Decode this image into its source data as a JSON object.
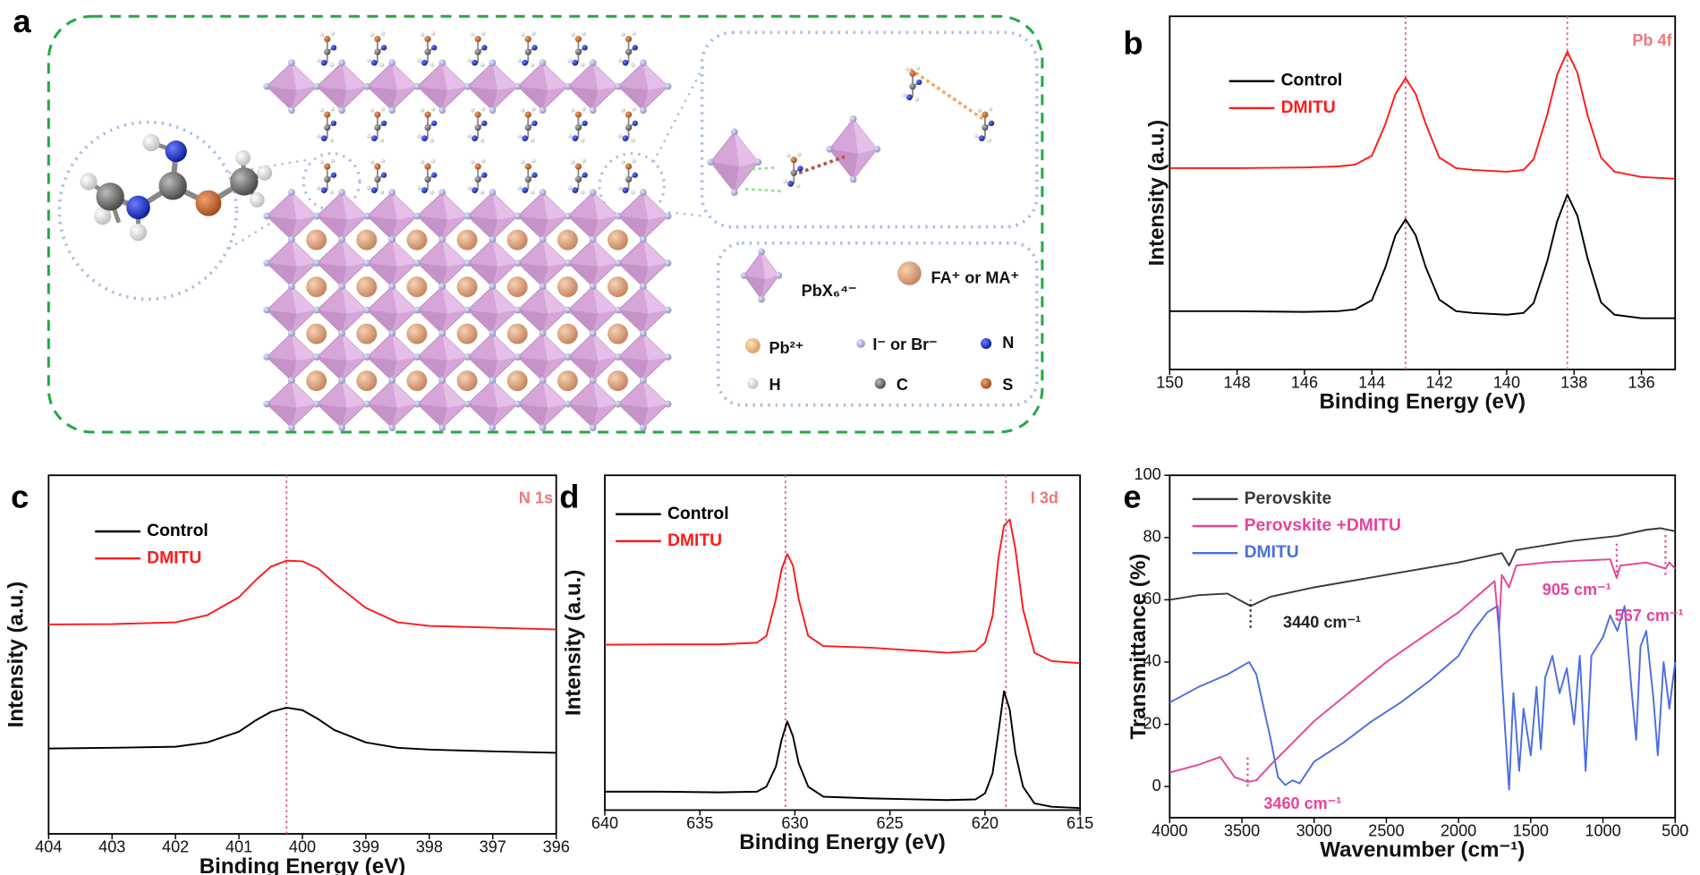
{
  "panel_a": {
    "label": "a",
    "legend": {
      "octahedron": "PbX₆⁴⁻",
      "cation": "FA⁺ or MA⁺",
      "pb": "Pb²⁺",
      "halide": "I⁻ or Br⁻",
      "n": "N",
      "h": "H",
      "c": "C",
      "s": "S"
    }
  },
  "chart_data": [
    {
      "type": "line",
      "label": "b",
      "annotation": "Pb 4f",
      "xlabel": "Binding Energy (eV)",
      "ylabel": "Intensity (a.u.)",
      "xlim": [
        150,
        135
      ],
      "xticks": [
        150,
        148,
        146,
        144,
        142,
        140,
        138,
        136
      ],
      "ylim": [
        0,
        100
      ],
      "reference_lines": [
        143.0,
        138.2
      ],
      "reference_color": "#e0508a",
      "series": [
        {
          "name": "Control",
          "color": "#000000",
          "x": [
            150,
            148,
            146,
            145,
            144.5,
            144,
            143.6,
            143.3,
            143,
            142.7,
            142.4,
            142,
            141.5,
            141,
            140,
            139.5,
            139.2,
            138.8,
            138.5,
            138.2,
            137.9,
            137.6,
            137.2,
            136.8,
            136,
            135
          ],
          "values": [
            16.5,
            16.5,
            16.3,
            16.5,
            17,
            19.6,
            28.9,
            38,
            42.5,
            38,
            28.9,
            19.8,
            16.5,
            16,
            15.5,
            16,
            18.8,
            30.5,
            42,
            49.5,
            43.5,
            31.5,
            19,
            15.5,
            14.5,
            14.5
          ]
        },
        {
          "name": "DMITU",
          "color": "#ff1a1a",
          "x": [
            150,
            148,
            146,
            145,
            144.5,
            144,
            143.6,
            143.3,
            143,
            142.7,
            142.4,
            142,
            141.5,
            141,
            140,
            139.5,
            139.2,
            138.8,
            138.5,
            138.2,
            137.9,
            137.6,
            137.2,
            136.8,
            136,
            135
          ],
          "values": [
            57,
            57,
            57.2,
            57.5,
            58,
            60.5,
            69.5,
            78,
            82.5,
            78,
            69.5,
            60,
            57,
            56.5,
            56,
            56.5,
            59.5,
            72,
            83.5,
            90,
            84,
            72,
            60,
            56,
            54.5,
            54
          ]
        }
      ]
    },
    {
      "type": "line",
      "label": "c",
      "annotation": "N 1s",
      "xlabel": "Binding Energy (eV)",
      "ylabel": "Intensity (a.u.)",
      "xlim": [
        404,
        396
      ],
      "xticks": [
        404,
        403,
        402,
        401,
        400,
        399,
        398,
        397,
        396
      ],
      "ylim": [
        0,
        100
      ],
      "reference_lines": [
        400.25
      ],
      "reference_color": "#e0508a",
      "series": [
        {
          "name": "Control",
          "color": "#000000",
          "x": [
            404,
            403,
            402,
            401.5,
            401,
            400.75,
            400.5,
            400.25,
            400,
            399.75,
            399.5,
            399,
            398.5,
            398,
            397,
            396
          ],
          "values": [
            23.8,
            24,
            24.3,
            25.5,
            28.5,
            31.5,
            34,
            35.2,
            34.5,
            32,
            29,
            25.5,
            24,
            23.5,
            23,
            22.6
          ]
        },
        {
          "name": "DMITU",
          "color": "#ff1a1a",
          "x": [
            404,
            403,
            402,
            401.5,
            401,
            400.75,
            400.5,
            400.25,
            400,
            399.75,
            399.5,
            399,
            398.5,
            398,
            397,
            396
          ],
          "values": [
            58.4,
            58.5,
            59,
            61,
            66,
            70.5,
            74.5,
            76.2,
            76,
            74,
            70,
            63,
            59,
            58,
            57.5,
            57
          ]
        }
      ]
    },
    {
      "type": "line",
      "label": "d",
      "annotation": "I 3d",
      "xlabel": "Binding Energy (eV)",
      "ylabel": "Intensity (a.u.)",
      "xlim": [
        640,
        615
      ],
      "xticks": [
        640,
        635,
        630,
        625,
        620,
        615
      ],
      "ylim": [
        0,
        100
      ],
      "reference_lines": [
        630.5,
        618.9
      ],
      "reference_color": "#e0508a",
      "series": [
        {
          "name": "Control",
          "color": "#000000",
          "x": [
            640,
            637,
            634,
            632,
            631.5,
            631,
            630.7,
            630.4,
            630.1,
            629.8,
            629.3,
            628.5,
            626,
            622,
            620.5,
            620,
            619.6,
            619.3,
            619,
            618.7,
            618.4,
            618,
            617.4,
            616.5,
            615
          ],
          "values": [
            5.5,
            5.5,
            5.3,
            5.5,
            7,
            13,
            21,
            26.5,
            22,
            14,
            7,
            4,
            3.5,
            3,
            3.2,
            5,
            11,
            23,
            35.5,
            30,
            17,
            7,
            2,
            1,
            0.6
          ]
        },
        {
          "name": "DMITU",
          "color": "#ff1a1a",
          "x": [
            640,
            637,
            634,
            632,
            631.5,
            631,
            630.7,
            630.4,
            630.1,
            629.8,
            629.3,
            628.5,
            626,
            622,
            620.5,
            620,
            619.6,
            619.3,
            619,
            618.7,
            618.4,
            618,
            617.4,
            616.5,
            615
          ],
          "values": [
            49.4,
            49.5,
            49.5,
            50,
            52,
            63,
            72,
            76.5,
            73,
            63,
            52,
            49,
            48.5,
            47,
            47.5,
            50,
            58,
            75,
            85,
            86.8,
            78,
            60,
            47,
            44.5,
            43.9
          ]
        }
      ]
    },
    {
      "type": "line",
      "label": "e",
      "xlabel": "Wavenumber (cm⁻¹)",
      "ylabel": "Transmittance (%)",
      "xlim": [
        4000,
        500
      ],
      "xticks": [
        4000,
        3500,
        3000,
        2500,
        2000,
        1500,
        1000,
        500
      ],
      "ylim": [
        -10,
        100
      ],
      "yticks": [
        0,
        20,
        40,
        60,
        80,
        100
      ],
      "markers": [
        {
          "x": 3440,
          "ymin": 51,
          "ymax": 60,
          "color": "#222222"
        },
        {
          "x": 3460,
          "ymin": 0,
          "ymax": 10,
          "color": "#e8439a"
        },
        {
          "x": 905,
          "ymin": 67,
          "ymax": 78,
          "color": "#e8439a"
        },
        {
          "x": 567,
          "ymin": 68,
          "ymax": 82,
          "color": "#e8439a"
        }
      ],
      "annotations": [
        {
          "text": "3440 cm⁻¹",
          "color": "#222222"
        },
        {
          "text": "3460 cm⁻¹",
          "color": "#e8439a"
        },
        {
          "text": "905 cm⁻¹",
          "color": "#e8439a"
        },
        {
          "text": "567 cm⁻¹",
          "color": "#e8439a"
        }
      ],
      "series": [
        {
          "name": "Perovskite",
          "color": "#3a3a3a",
          "x": [
            4000,
            3800,
            3600,
            3440,
            3300,
            3000,
            2500,
            2000,
            1700,
            1650,
            1600,
            1200,
            900,
            700,
            600,
            500
          ],
          "values": [
            60,
            61.5,
            62,
            58,
            61,
            64,
            68,
            72,
            75,
            71,
            76,
            79,
            80.5,
            82.5,
            83,
            82
          ]
        },
        {
          "name": "Perovskite +DMITU",
          "color": "#e8439a",
          "x": [
            4000,
            3800,
            3650,
            3550,
            3460,
            3400,
            3300,
            3000,
            2500,
            2000,
            1750,
            1720,
            1700,
            1650,
            1600,
            1400,
            1200,
            950,
            905,
            880,
            700,
            567,
            540,
            500
          ],
          "values": [
            4.5,
            7,
            9.5,
            3,
            1.5,
            2,
            7,
            21,
            40,
            56,
            66,
            50,
            68,
            64,
            71,
            72,
            72.5,
            73,
            67,
            71,
            72,
            70,
            72,
            70
          ]
        },
        {
          "name": "DMITU",
          "color": "#4a6fe0",
          "x": [
            4000,
            3800,
            3600,
            3450,
            3400,
            3300,
            3250,
            3200,
            3150,
            3100,
            3000,
            2800,
            2600,
            2400,
            2200,
            2000,
            1900,
            1800,
            1730,
            1680,
            1650,
            1620,
            1580,
            1550,
            1500,
            1460,
            1430,
            1400,
            1350,
            1300,
            1250,
            1200,
            1160,
            1120,
            1080,
            1000,
            950,
            900,
            850,
            800,
            770,
            740,
            700,
            650,
            620,
            580,
            540,
            500
          ],
          "values": [
            27,
            32,
            36,
            40,
            36,
            15,
            3,
            0.5,
            2,
            1,
            8,
            14,
            21,
            27,
            34,
            42,
            50,
            56,
            58,
            20,
            -1,
            30,
            5,
            25,
            10,
            32,
            12,
            35,
            42,
            30,
            38,
            20,
            42,
            5,
            42,
            48,
            55,
            50,
            58,
            30,
            15,
            45,
            50,
            28,
            10,
            40,
            25,
            40
          ]
        }
      ]
    }
  ]
}
